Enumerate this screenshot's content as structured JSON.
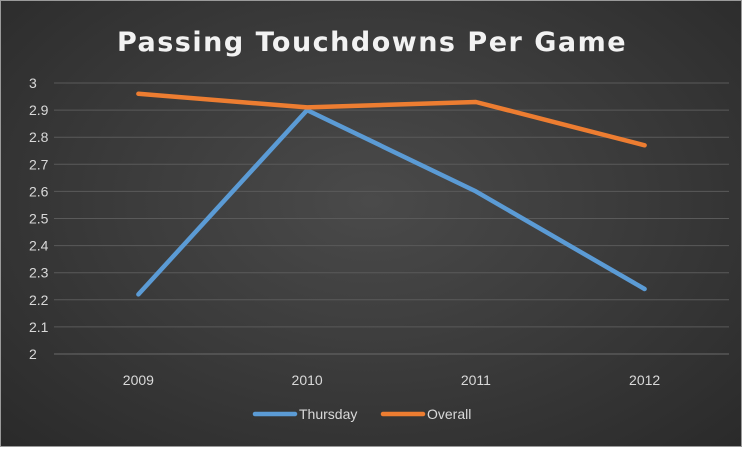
{
  "chart_data": {
    "type": "line",
    "title": "Passing Touchdowns Per Game",
    "xlabel": "",
    "ylabel": "",
    "categories": [
      "2009",
      "2010",
      "2011",
      "2012"
    ],
    "ylim": [
      2,
      3
    ],
    "yticks": [
      "2",
      "2.1",
      "2.2",
      "2.3",
      "2.4",
      "2.5",
      "2.6",
      "2.7",
      "2.8",
      "2.9",
      "3"
    ],
    "grid": true,
    "legend_position": "bottom",
    "series": [
      {
        "name": "Thursday",
        "color": "#5b9bd5",
        "values": [
          2.22,
          2.9,
          2.6,
          2.24
        ]
      },
      {
        "name": "Overall",
        "color": "#ed7d31",
        "values": [
          2.96,
          2.91,
          2.93,
          2.77
        ]
      }
    ]
  }
}
